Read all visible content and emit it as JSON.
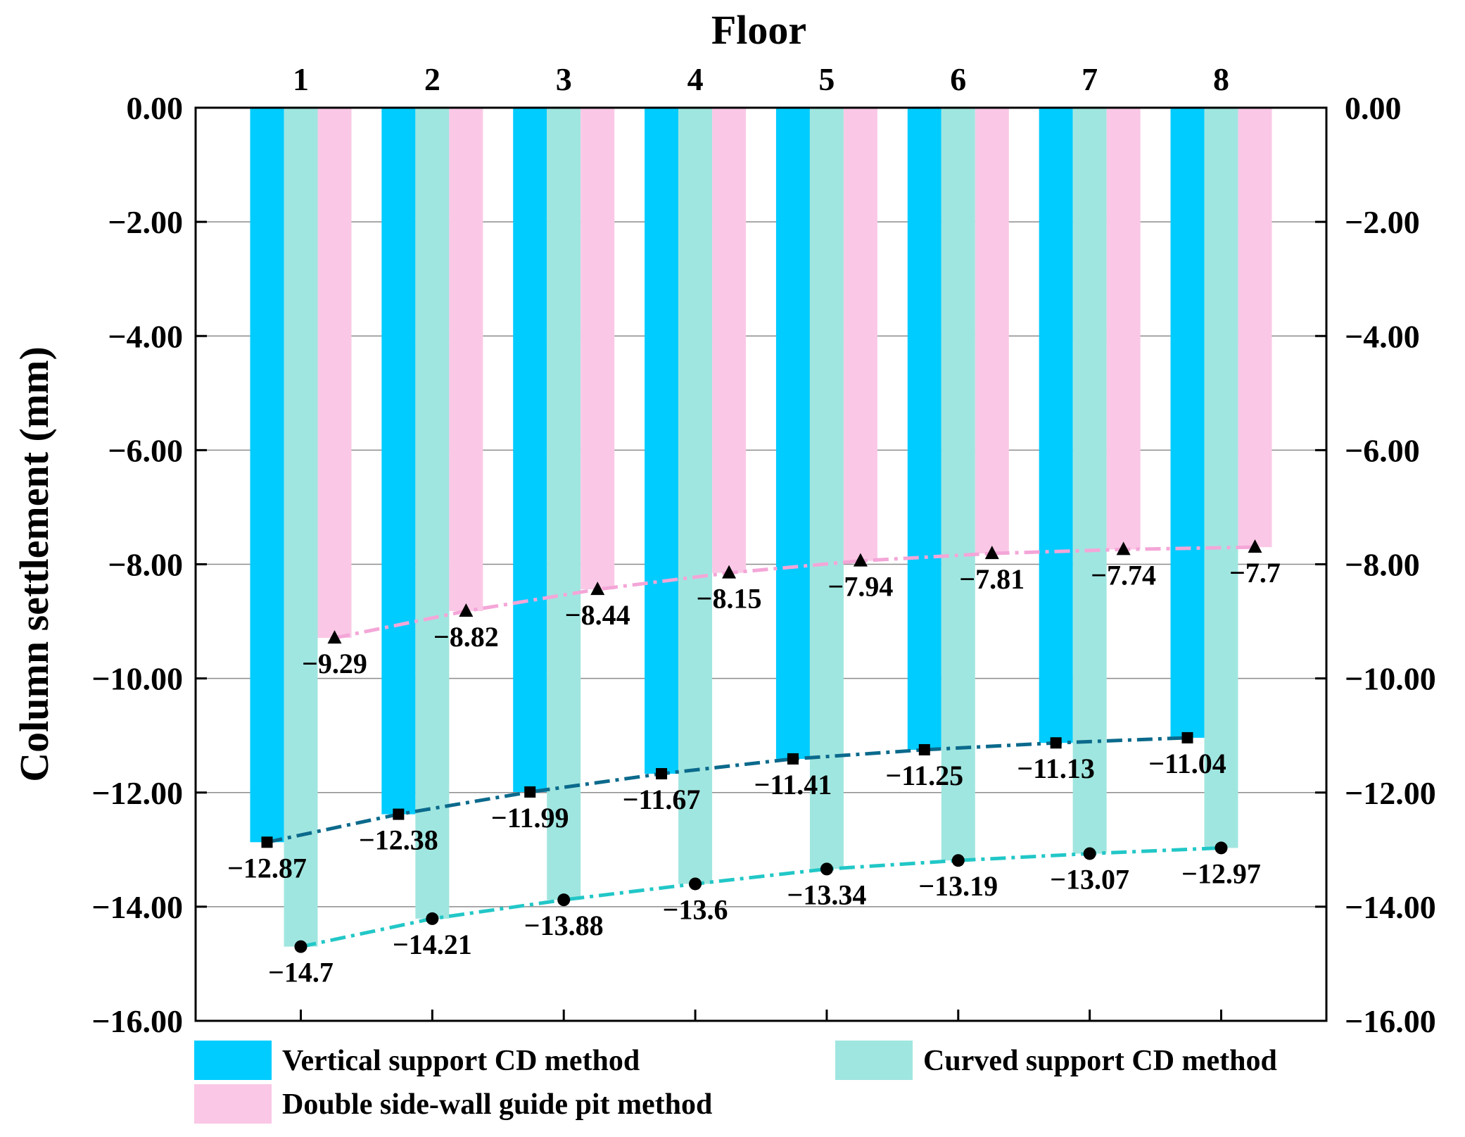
{
  "chart_data": {
    "type": "bar",
    "xlabel": "Floor",
    "ylabel": "Column settlement (mm)",
    "categories": [
      "1",
      "2",
      "3",
      "4",
      "5",
      "6",
      "7",
      "8"
    ],
    "ylim": [
      -16,
      0
    ],
    "yticks": [
      0,
      -2,
      -4,
      -6,
      -8,
      -10,
      -12,
      -14,
      -16
    ],
    "ytick_labels": [
      "0.00",
      "−2.00",
      "−4.00",
      "−6.00",
      "−8.00",
      "−10.00",
      "−12.00",
      "−14.00",
      "−16.00"
    ],
    "grid": true,
    "legend_position": "bottom",
    "series": [
      {
        "name": "Vertical support CD method",
        "color": "#00CCFF",
        "line_color": "#0B6A8C",
        "marker": "square",
        "values": [
          -12.87,
          -12.38,
          -11.99,
          -11.67,
          -11.41,
          -11.25,
          -11.13,
          -11.04
        ],
        "labels": [
          "−12.87",
          "−12.38",
          "−11.99",
          "−11.67",
          "−11.41",
          "−11.25",
          "−11.13",
          "−11.04"
        ]
      },
      {
        "name": "Curved support CD method",
        "color": "#A0E6E0",
        "line_color": "#22C7C7",
        "marker": "circle",
        "values": [
          -14.7,
          -14.21,
          -13.88,
          -13.6,
          -13.34,
          -13.19,
          -13.07,
          -12.97
        ],
        "labels": [
          "−14.7",
          "−14.21",
          "−13.88",
          "−13.6",
          "−13.34",
          "−13.19",
          "−13.07",
          "−12.97"
        ]
      },
      {
        "name": "Double side-wall guide pit method",
        "color": "#FAC8E6",
        "line_color": "#F4A6D8",
        "marker": "triangle",
        "values": [
          -9.29,
          -8.82,
          -8.44,
          -8.15,
          -7.94,
          -7.81,
          -7.74,
          -7.7
        ],
        "labels": [
          "−9.29",
          "−8.82",
          "−8.44",
          "−8.15",
          "−7.94",
          "−7.81",
          "−7.74",
          "−7.7"
        ]
      }
    ]
  }
}
